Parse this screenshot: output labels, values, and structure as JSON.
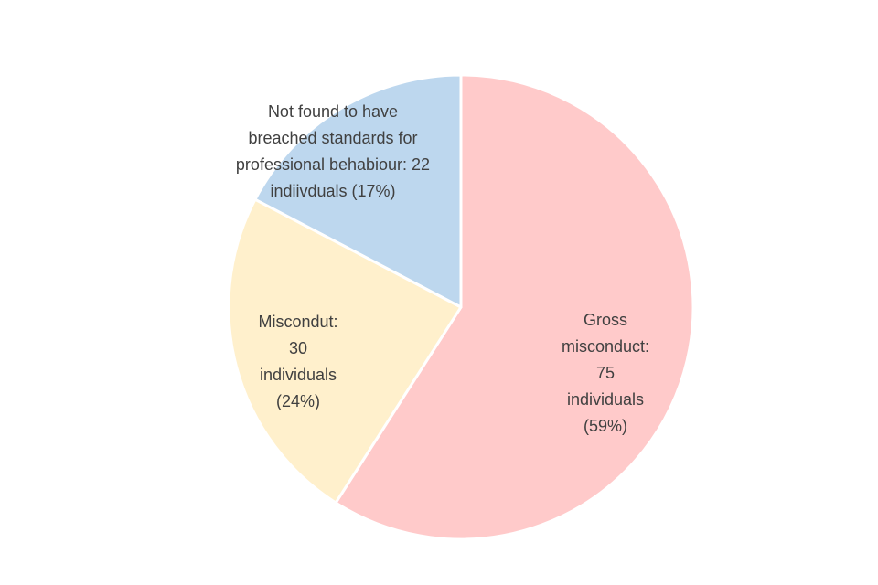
{
  "chart_data": {
    "type": "pie",
    "title": "",
    "slices": [
      {
        "category": "Gross misconduct",
        "value": 75,
        "percent": 59,
        "color": "#ffcaca",
        "label_lines": [
          "Gross",
          "misconduct:",
          "75",
          "individuals",
          "(59%)"
        ]
      },
      {
        "category": "Misconduct",
        "value": 30,
        "percent": 24,
        "color": "#fff0cc",
        "label_lines": [
          "Miscondut:",
          "30",
          "individuals",
          "(24%)"
        ]
      },
      {
        "category": "Not found to have breached standards for professional behaviour",
        "value": 22,
        "percent": 17,
        "color": "#bdd7ee",
        "label_lines": [
          "Not found to have",
          "breached standards for",
          "professional behabiour: 22",
          "indiivduals (17%)"
        ]
      }
    ],
    "legend": "none"
  }
}
